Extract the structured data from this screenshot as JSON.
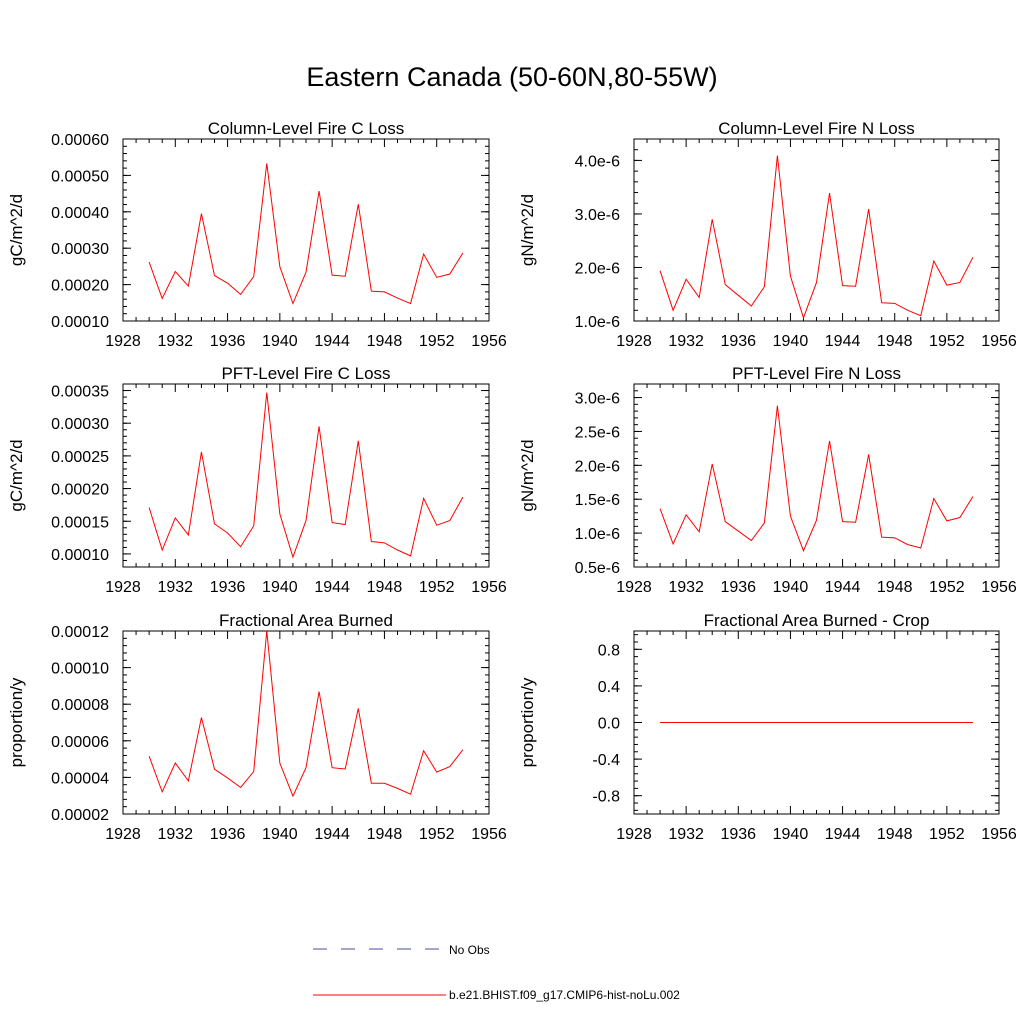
{
  "title": "Eastern Canada (50-60N,80-55W)",
  "legend": [
    {
      "label": "No Obs",
      "color": "#4a4a9a",
      "style": "dashed"
    },
    {
      "label": "b.e21.BHIST.f09_g17.CMIP6-hist-noLu.002",
      "color": "#ff0000",
      "style": "solid"
    }
  ],
  "chart_data": [
    {
      "type": "line",
      "title": "Column-Level Fire C Loss",
      "ylabel": "gC/m^2/d",
      "xlim": [
        1928,
        1956
      ],
      "xticks": [
        "1928",
        "1932",
        "1936",
        "1940",
        "1944",
        "1948",
        "1952",
        "1956"
      ],
      "ylim": [
        0.0001,
        0.0006
      ],
      "yticks": [
        "0.00010",
        "0.00020",
        "0.00030",
        "0.00040",
        "0.00050",
        "0.00060"
      ],
      "series": [
        {
          "x": [
            1930,
            1931,
            1932,
            1933,
            1934,
            1935,
            1936,
            1937,
            1938,
            1939,
            1940,
            1941,
            1942,
            1943,
            1944,
            1945,
            1946,
            1947,
            1948,
            1949,
            1950,
            1951,
            1952,
            1953,
            1954
          ],
          "values": [
            0.000262,
            0.000162,
            0.000236,
            0.000196,
            0.000395,
            0.000225,
            0.000204,
            0.000173,
            0.000222,
            0.000533,
            0.000249,
            0.000148,
            0.000234,
            0.000457,
            0.000226,
            0.000223,
            0.000421,
            0.000182,
            0.00018,
            0.000163,
            0.000148,
            0.000284,
            0.00022,
            0.000229,
            0.000287
          ]
        }
      ]
    },
    {
      "type": "line",
      "title": "Column-Level Fire N Loss",
      "ylabel": "gN/m^2/d",
      "xlim": [
        1928,
        1956
      ],
      "xticks": [
        "1928",
        "1932",
        "1936",
        "1940",
        "1944",
        "1948",
        "1952",
        "1956"
      ],
      "ylim": [
        1e-06,
        4.4e-06
      ],
      "yticks": [
        "1.0e-6",
        "2.0e-6",
        "3.0e-6",
        "4.0e-6"
      ],
      "ytick_values": [
        1e-06,
        2e-06,
        3e-06,
        4e-06
      ],
      "series": [
        {
          "x": [
            1930,
            1931,
            1932,
            1933,
            1934,
            1935,
            1936,
            1937,
            1938,
            1939,
            1940,
            1941,
            1942,
            1943,
            1944,
            1945,
            1946,
            1947,
            1948,
            1949,
            1950,
            1951,
            1952,
            1953,
            1954
          ],
          "values": [
            1.94e-06,
            1.2e-06,
            1.78e-06,
            1.44e-06,
            2.9e-06,
            1.68e-06,
            1.48e-06,
            1.28e-06,
            1.64e-06,
            4.09e-06,
            1.84e-06,
            1.06e-06,
            1.72e-06,
            3.39e-06,
            1.66e-06,
            1.65e-06,
            3.09e-06,
            1.34e-06,
            1.33e-06,
            1.2e-06,
            1.1e-06,
            2.12e-06,
            1.67e-06,
            1.72e-06,
            2.19e-06
          ]
        }
      ]
    },
    {
      "type": "line",
      "title": "PFT-Level Fire C Loss",
      "ylabel": "gC/m^2/d",
      "xlim": [
        1928,
        1956
      ],
      "xticks": [
        "1928",
        "1932",
        "1936",
        "1940",
        "1944",
        "1948",
        "1952",
        "1956"
      ],
      "ylim": [
        8e-05,
        0.00036
      ],
      "yticks": [
        "0.00010",
        "0.00015",
        "0.00020",
        "0.00025",
        "0.00030",
        "0.00035"
      ],
      "ytick_values": [
        0.0001,
        0.00015,
        0.0002,
        0.00025,
        0.0003,
        0.00035
      ],
      "series": [
        {
          "x": [
            1930,
            1931,
            1932,
            1933,
            1934,
            1935,
            1936,
            1937,
            1938,
            1939,
            1940,
            1941,
            1942,
            1943,
            1944,
            1945,
            1946,
            1947,
            1948,
            1949,
            1950,
            1951,
            1952,
            1953,
            1954
          ],
          "values": [
            0.000171,
            0.000106,
            0.000155,
            0.000129,
            0.000256,
            0.000146,
            0.000132,
            0.000111,
            0.000143,
            0.000347,
            0.000161,
            9.5e-05,
            0.000151,
            0.000295,
            0.000148,
            0.000145,
            0.000273,
            0.000119,
            0.000117,
            0.000106,
            9.7e-05,
            0.000185,
            0.000144,
            0.000151,
            0.000187
          ]
        }
      ]
    },
    {
      "type": "line",
      "title": "PFT-Level Fire N Loss",
      "ylabel": "gN/m^2/d",
      "xlim": [
        1928,
        1956
      ],
      "xticks": [
        "1928",
        "1932",
        "1936",
        "1940",
        "1944",
        "1948",
        "1952",
        "1956"
      ],
      "ylim": [
        5e-07,
        3.2e-06
      ],
      "yticks": [
        "0.5e-6",
        "1.0e-6",
        "1.5e-6",
        "2.0e-6",
        "2.5e-6",
        "3.0e-6"
      ],
      "ytick_values": [
        5e-07,
        1e-06,
        1.5e-06,
        2e-06,
        2.5e-06,
        3e-06
      ],
      "series": [
        {
          "x": [
            1930,
            1931,
            1932,
            1933,
            1934,
            1935,
            1936,
            1937,
            1938,
            1939,
            1940,
            1941,
            1942,
            1943,
            1944,
            1945,
            1946,
            1947,
            1948,
            1949,
            1950,
            1951,
            1952,
            1953,
            1954
          ],
          "values": [
            1.36e-06,
            8.4e-07,
            1.27e-06,
            1.02e-06,
            2.02e-06,
            1.17e-06,
            1.03e-06,
            8.9e-07,
            1.15e-06,
            2.88e-06,
            1.25e-06,
            7.4e-07,
            1.19e-06,
            2.36e-06,
            1.17e-06,
            1.16e-06,
            2.16e-06,
            9.4e-07,
            9.3e-07,
            8.3e-07,
            7.8e-07,
            1.51e-06,
            1.18e-06,
            1.23e-06,
            1.54e-06
          ]
        }
      ]
    },
    {
      "type": "line",
      "title": "Fractional Area Burned",
      "ylabel": "proportion/y",
      "xlim": [
        1928,
        1956
      ],
      "xticks": [
        "1928",
        "1932",
        "1936",
        "1940",
        "1944",
        "1948",
        "1952",
        "1956"
      ],
      "ylim": [
        2e-05,
        0.00012
      ],
      "yticks": [
        "0.00002",
        "0.00004",
        "0.00006",
        "0.00008",
        "0.00010",
        "0.00012"
      ],
      "ytick_values": [
        2e-05,
        4e-05,
        6e-05,
        8e-05,
        0.0001,
        0.00012
      ],
      "series": [
        {
          "x": [
            1930,
            1931,
            1932,
            1933,
            1934,
            1935,
            1936,
            1937,
            1938,
            1939,
            1940,
            1941,
            1942,
            1943,
            1944,
            1945,
            1946,
            1947,
            1948,
            1949,
            1950,
            1951,
            1952,
            1953,
            1954
          ],
          "values": [
            5.16e-05,
            3.21e-05,
            4.79e-05,
            3.81e-05,
            7.27e-05,
            4.45e-05,
            3.97e-05,
            3.45e-05,
            4.32e-05,
            0.00012,
            4.78e-05,
            2.98e-05,
            4.53e-05,
            8.69e-05,
            4.53e-05,
            4.46e-05,
            7.77e-05,
            3.68e-05,
            3.68e-05,
            3.4e-05,
            3.08e-05,
            5.46e-05,
            4.29e-05,
            4.59e-05,
            5.51e-05
          ]
        }
      ]
    },
    {
      "type": "line",
      "title": "Fractional Area Burned - Crop",
      "ylabel": "proportion/y",
      "xlim": [
        1928,
        1956
      ],
      "xticks": [
        "1928",
        "1932",
        "1936",
        "1940",
        "1944",
        "1948",
        "1952",
        "1956"
      ],
      "ylim": [
        -1.0,
        1.0
      ],
      "yticks": [
        "-0.8",
        "-0.4",
        "0.0",
        "0.4",
        "0.8"
      ],
      "ytick_values": [
        -0.8,
        -0.4,
        0.0,
        0.4,
        0.8
      ],
      "series": [
        {
          "x": [
            1930,
            1931,
            1932,
            1933,
            1934,
            1935,
            1936,
            1937,
            1938,
            1939,
            1940,
            1941,
            1942,
            1943,
            1944,
            1945,
            1946,
            1947,
            1948,
            1949,
            1950,
            1951,
            1952,
            1953,
            1954
          ],
          "values": [
            0,
            0,
            0,
            0,
            0,
            0,
            0,
            0,
            0,
            0,
            0,
            0,
            0,
            0,
            0,
            0,
            0,
            0,
            0,
            0,
            0,
            0,
            0,
            0,
            0
          ]
        }
      ]
    }
  ]
}
